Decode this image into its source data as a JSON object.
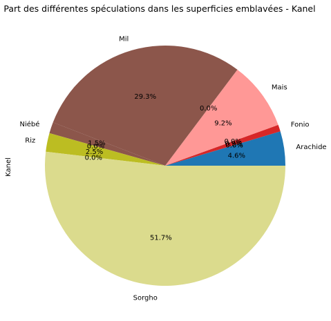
{
  "chart_data": {
    "type": "pie",
    "title": "Part des différentes spéculations dans les superficies emblavées - Kanel",
    "ylabel": "Kanel",
    "start_angle_deg": 0,
    "direction": "counterclockwise",
    "slices": [
      {
        "label": "Arachide",
        "value": 4.6,
        "pct_label": "4.6%",
        "color": "#1f77b4"
      },
      {
        "label": "",
        "value": 0.0,
        "pct_label": "0.0%",
        "color": "#ff7f0e"
      },
      {
        "label": "",
        "value": 0.0,
        "pct_label": "0.0%",
        "color": "#2ca02c"
      },
      {
        "label": "Fonio",
        "value": 0.9,
        "pct_label": "0.9%",
        "color": "#d62728"
      },
      {
        "label": "",
        "value": 0.0,
        "pct_label": "0.0%",
        "color": "#9467bd"
      },
      {
        "label": "Mais",
        "value": 9.2,
        "pct_label": "9.2%",
        "color": "#ff9896"
      },
      {
        "label": "",
        "value": 0.0,
        "pct_label": "0.0%",
        "color": "#e377c2"
      },
      {
        "label": "Mil",
        "value": 29.3,
        "pct_label": "29.3%",
        "color": "#8c564b"
      },
      {
        "label": "Niébé",
        "value": 1.5,
        "pct_label": "1.5%",
        "color": "#8c564b"
      },
      {
        "label": "",
        "value": 0.0,
        "pct_label": "0.0%",
        "color": "#7f7f7f"
      },
      {
        "label": "Riz",
        "value": 2.5,
        "pct_label": "2.5%",
        "color": "#bcbd22"
      },
      {
        "label": "",
        "value": 0.0,
        "pct_label": "0.0%",
        "color": "#17becf"
      },
      {
        "label": "Sorgho",
        "value": 51.7,
        "pct_label": "51.7%",
        "color": "#dbdb8d"
      }
    ]
  }
}
